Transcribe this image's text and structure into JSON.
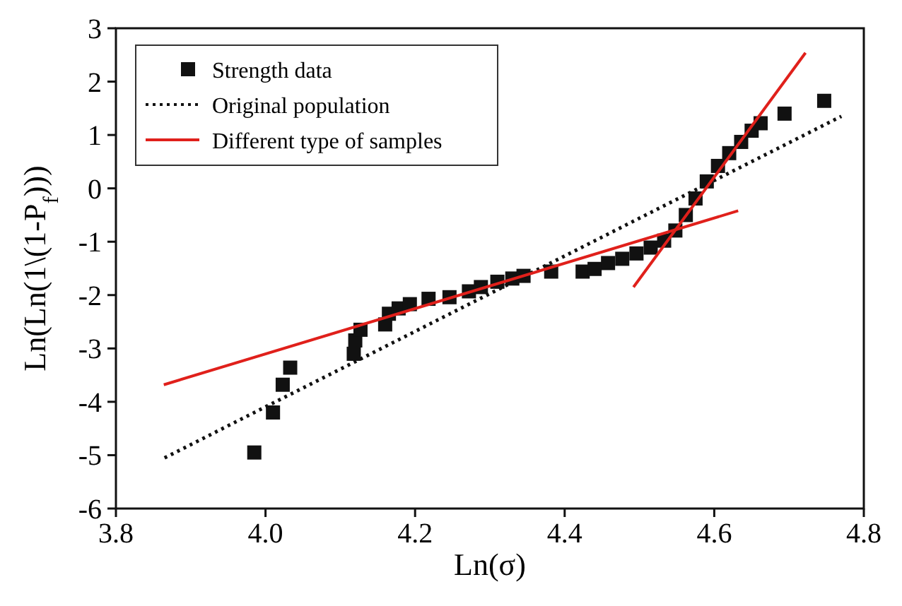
{
  "chart_data": {
    "type": "scatter",
    "xlabel": "Ln(σ)",
    "ylabel": "Ln(Ln(1\\(1-P$_{f}$)))",
    "xlim": [
      3.8,
      4.8
    ],
    "ylim": [
      -6,
      3
    ],
    "xticks": [
      3.8,
      {
        "value": 4,
        "label": "4.0"
      },
      4.2,
      4.4,
      4.6,
      4.8
    ],
    "yticks": [
      -6,
      -5,
      -4,
      -3,
      -2,
      -1,
      0,
      1,
      2,
      3
    ],
    "grid": false,
    "legend": "top left",
    "series": [
      {
        "name": "Strength data",
        "marker": "square",
        "color": "#111111",
        "x": [
          3.985,
          4.01,
          4.023,
          4.033,
          4.118,
          4.12,
          4.127,
          4.16,
          4.165,
          4.178,
          4.193,
          4.218,
          4.246,
          4.272,
          4.288,
          4.31,
          4.33,
          4.345,
          4.382,
          4.424,
          4.44,
          4.458,
          4.477,
          4.496,
          4.515,
          4.533,
          4.548,
          4.562,
          4.575,
          4.59,
          4.605,
          4.62,
          4.636,
          4.65,
          4.662,
          4.694,
          4.747
        ],
        "values": [
          -4.95,
          -4.2,
          -3.68,
          -3.36,
          -3.1,
          -2.85,
          -2.65,
          -2.55,
          -2.35,
          -2.25,
          -2.17,
          -2.07,
          -2.04,
          -1.93,
          -1.85,
          -1.75,
          -1.69,
          -1.64,
          -1.56,
          -1.56,
          -1.51,
          -1.4,
          -1.32,
          -1.22,
          -1.11,
          -0.98,
          -0.79,
          -0.5,
          -0.19,
          0.13,
          0.42,
          0.66,
          0.87,
          1.08,
          1.22,
          1.4,
          1.64
        ]
      },
      {
        "name": "Original population",
        "type": "line",
        "line_style": "dotted",
        "color": "#111111",
        "x": [
          3.865,
          4.77
        ],
        "values": [
          -5.05,
          1.35
        ]
      },
      {
        "name": "Different type of samples",
        "type": "line",
        "line_style": "solid",
        "color": "#e0201b",
        "x": [
          3.864,
          4.632
        ],
        "values": [
          -3.68,
          -0.42
        ]
      },
      {
        "type": "line",
        "line_style": "solid",
        "color": "#e0201b",
        "x": [
          4.492,
          4.722
        ],
        "values": [
          -1.85,
          2.54
        ]
      }
    ]
  }
}
